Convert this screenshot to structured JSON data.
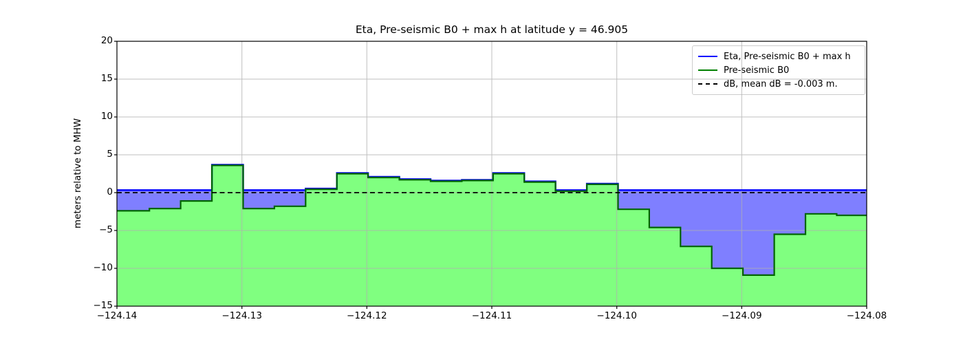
{
  "figure": {
    "title": "Eta, Pre-seismic B0 + max h at latitude y = 46.905",
    "ylabel": "meters relative to MHW"
  },
  "legend": {
    "position": "upper right",
    "items": [
      {
        "label": "Eta, Pre-seismic B0 + max h",
        "color": "#0000ff",
        "style": "solid"
      },
      {
        "label": "Pre-seismic B0",
        "color": "#008000",
        "style": "solid"
      },
      {
        "label": "dB, mean dB = -0.003 m.",
        "color": "#000000",
        "style": "dashed"
      }
    ]
  },
  "chart_data": {
    "type": "area",
    "title": "Eta, Pre-seismic B0 + max h at latitude y = 46.905",
    "xlabel": "",
    "ylabel": "meters relative to MHW",
    "xlim": [
      -124.14,
      -124.08
    ],
    "ylim": [
      -15,
      20
    ],
    "grid": true,
    "xticks": [
      {
        "v": -124.14,
        "label": "−124.14"
      },
      {
        "v": -124.13,
        "label": "−124.13"
      },
      {
        "v": -124.12,
        "label": "−124.12"
      },
      {
        "v": -124.11,
        "label": "−124.11"
      },
      {
        "v": -124.1,
        "label": "−124.10"
      },
      {
        "v": -124.09,
        "label": "−124.09"
      },
      {
        "v": -124.08,
        "label": "−124.08"
      }
    ],
    "yticks": [
      {
        "v": -15,
        "label": "−15"
      },
      {
        "v": -10,
        "label": "−10"
      },
      {
        "v": -5,
        "label": "−5"
      },
      {
        "v": 0,
        "label": "0"
      },
      {
        "v": 5,
        "label": "5"
      },
      {
        "v": 10,
        "label": "10"
      },
      {
        "v": 15,
        "label": "15"
      },
      {
        "v": 20,
        "label": "20"
      }
    ],
    "series": [
      {
        "name": "Pre-seismic B0",
        "render": "step-fill",
        "line_color": "#006400",
        "fill_color": "#80ff80",
        "x_edges": [
          -124.14,
          -124.1374,
          -124.1349,
          -124.1324,
          -124.1299,
          -124.1274,
          -124.1249,
          -124.1224,
          -124.1199,
          -124.1174,
          -124.1149,
          -124.1124,
          -124.1099,
          -124.1074,
          -124.1049,
          -124.1024,
          -124.0999,
          -124.0974,
          -124.0949,
          -124.0924,
          -124.0899,
          -124.0874,
          -124.0849,
          -124.0824,
          -124.08
        ],
        "values": [
          -2.4,
          -2.1,
          -1.1,
          3.6,
          -2.1,
          -1.8,
          0.45,
          2.5,
          2.0,
          1.7,
          1.5,
          1.6,
          2.5,
          1.4,
          0.2,
          1.1,
          -2.2,
          -4.6,
          -7.1,
          -10.0,
          -10.9,
          -5.5,
          -2.8,
          -3.0
        ]
      },
      {
        "name": "Eta, Pre-seismic B0 + max h",
        "render": "step-line-and-fill",
        "line_color": "#0000ff",
        "fill_color": "#7f7fff",
        "eta_over_water": 0.25,
        "rule": "eta = max(B0, 0.25); water fill between eta and B0 where B0 < eta"
      },
      {
        "name": "dB, mean dB = -0.003 m.",
        "render": "hline-dashed",
        "color": "#000000",
        "value": 0.0,
        "mean_dB": -0.003
      }
    ],
    "colors": {
      "grid": "#b0b0b0",
      "frame": "#000000",
      "land_fill": "#80ff80",
      "water_fill": "#7f7fff",
      "b0_line": "#006400",
      "eta_line": "#0000ff",
      "db_line": "#000000"
    }
  }
}
